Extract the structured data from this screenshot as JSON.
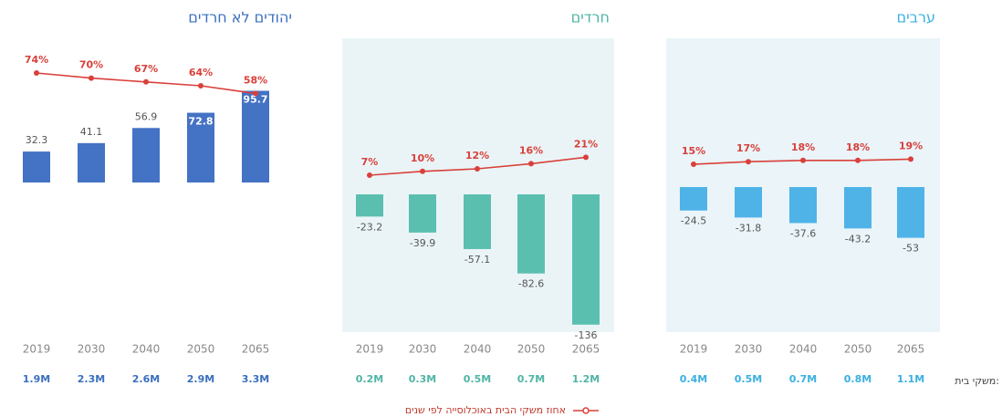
{
  "chart_data": [
    {
      "type": "combo",
      "title": "יהודים לא חרדים",
      "title_color": "#3a6fc0",
      "categories": [
        "2019",
        "2030",
        "2040",
        "2050",
        "2065"
      ],
      "series": [
        {
          "kind": "bar",
          "color": "#4472c4",
          "values": [
            32.3,
            41.1,
            56.9,
            72.8,
            95.7
          ]
        },
        {
          "kind": "line",
          "color": "#d9403a",
          "values": [
            74,
            70,
            67,
            64,
            58
          ],
          "value_labels": [
            "74%",
            "70%",
            "67%",
            "64%",
            "58%"
          ]
        }
      ],
      "households": {
        "color": "#3a6fc0",
        "values": [
          1900000,
          2300000,
          2600000,
          2900000,
          3300000
        ],
        "value_labels": [
          "1.9M",
          "2.3M",
          "2.6M",
          "2.9M",
          "3.3M"
        ]
      }
    },
    {
      "type": "combo",
      "title": "חרדים",
      "title_color": "#4fb5a5",
      "categories": [
        "2019",
        "2030",
        "2040",
        "2050",
        "2065"
      ],
      "series": [
        {
          "kind": "bar",
          "color": "#5bbfb0",
          "values": [
            -23.2,
            -39.9,
            -57.1,
            -82.6,
            -136
          ]
        },
        {
          "kind": "line",
          "color": "#d9403a",
          "values": [
            7,
            10,
            12,
            16,
            21
          ],
          "value_labels": [
            "7%",
            "10%",
            "12%",
            "16%",
            "21%"
          ]
        }
      ],
      "households": {
        "color": "#4fb5a5",
        "values": [
          200000,
          300000,
          500000,
          700000,
          1200000
        ],
        "value_labels": [
          "0.2M",
          "0.3M",
          "0.5M",
          "0.7M",
          "1.2M"
        ]
      }
    },
    {
      "type": "combo",
      "title": "ערבים",
      "title_color": "#3ab0e0",
      "categories": [
        "2019",
        "2030",
        "2040",
        "2050",
        "2065"
      ],
      "series": [
        {
          "kind": "bar",
          "color": "#4fb3e8",
          "values": [
            -24.5,
            -31.8,
            -37.6,
            -43.2,
            -53
          ]
        },
        {
          "kind": "line",
          "color": "#d9403a",
          "values": [
            15,
            17,
            18,
            18,
            19
          ],
          "value_labels": [
            "15%",
            "17%",
            "18%",
            "18%",
            "19%"
          ]
        }
      ],
      "households": {
        "color": "#3ab0e0",
        "values": [
          400000,
          500000,
          700000,
          800000,
          1100000
        ],
        "value_labels": [
          "0.4M",
          "0.5M",
          "0.7M",
          "0.8M",
          "1.1M"
        ]
      }
    }
  ],
  "households_label": "משקי בית:",
  "legend_label": "אחוז משקי הבית באוכלוסייה לפי שנים"
}
